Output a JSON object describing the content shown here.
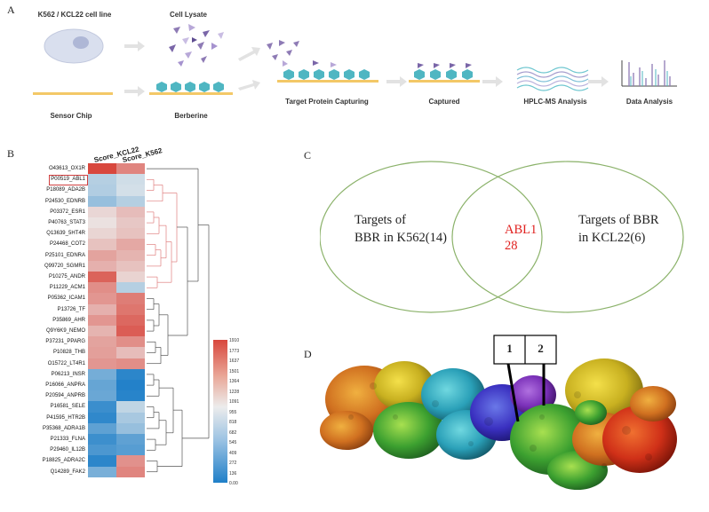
{
  "panels": {
    "a": "A",
    "b": "B",
    "c": "C",
    "d": "D"
  },
  "workflow": {
    "cell_line": "K562 / KCL22 cell line",
    "cell_lysate": "Cell Lysate",
    "sensor_chip": "Sensor Chip",
    "berberine": "Berberine",
    "target_capture": "Target Protein Capturing",
    "captured": "Captured",
    "hplc": "HPLC-MS Analysis",
    "data_analysis": "Data Analysis"
  },
  "heatmap": {
    "columns": [
      "Score_KCL22",
      "Score_K562"
    ],
    "rows": [
      "O43613_OX1R",
      "P00519_ABL1",
      "P18089_ADA2B",
      "P24530_EDNRB",
      "P03372_ESR1",
      "P40763_STAT3",
      "Q13639_5HT4R",
      "P24468_COT2",
      "P25101_EDNRA",
      "Q99720_SGMR1",
      "P10275_ANDR",
      "P11229_ACM1",
      "P05362_ICAM1",
      "P13726_TF",
      "P35869_AHR",
      "Q9Y6K9_NEMO",
      "P37231_PPARG",
      "P10828_THB",
      "O15722_LT4R1",
      "P06213_INSR",
      "P16066_ANPRA",
      "P20594_ANPRB",
      "P16581_SELE",
      "P41595_HTR2B",
      "P35368_ADRA1B",
      "P21333_FLNA",
      "P29460_IL12B",
      "P18825_ADRA2C",
      "Q14289_FAK2"
    ],
    "values": [
      [
        1910,
        1550
      ],
      [
        700,
        820
      ],
      [
        680,
        840
      ],
      [
        560,
        700
      ],
      [
        1080,
        1230
      ],
      [
        1020,
        1170
      ],
      [
        1090,
        1200
      ],
      [
        1200,
        1350
      ],
      [
        1380,
        1280
      ],
      [
        1300,
        1200
      ],
      [
        1750,
        1100
      ],
      [
        1500,
        700
      ],
      [
        1450,
        1600
      ],
      [
        1300,
        1640
      ],
      [
        1450,
        1720
      ],
      [
        1280,
        1780
      ],
      [
        1380,
        1500
      ],
      [
        1400,
        1230
      ],
      [
        1450,
        1500
      ],
      [
        400,
        60
      ],
      [
        330,
        20
      ],
      [
        350,
        40
      ],
      [
        130,
        750
      ],
      [
        80,
        640
      ],
      [
        300,
        560
      ],
      [
        140,
        300
      ],
      [
        210,
        260
      ],
      [
        60,
        1480
      ],
      [
        420,
        1550
      ]
    ],
    "highlighted_row": "P00519_ABL1",
    "scale_ticks": [
      "1910",
      "1773",
      "1637",
      "1501",
      "1364",
      "1228",
      "1091",
      "955",
      "818",
      "682",
      "545",
      "409",
      "272",
      "136",
      "0.00"
    ],
    "scale_min": 0,
    "scale_max": 1910
  },
  "venn": {
    "left_line1": "Targets of",
    "left_line2": "BBR in K562(14)",
    "center_line1": "ABL1",
    "center_line2": "28",
    "right_line1": "Targets of BBR",
    "right_line2": "in KCL22(6)"
  },
  "structure": {
    "box1": "1",
    "box2": "2"
  },
  "colors": {
    "venn_circle": "#8bb26a",
    "highlight_red": "#e0201e",
    "heat_high": "#d8473d",
    "heat_mid": "#e8e8e8",
    "heat_low": "#1f7fc8"
  }
}
